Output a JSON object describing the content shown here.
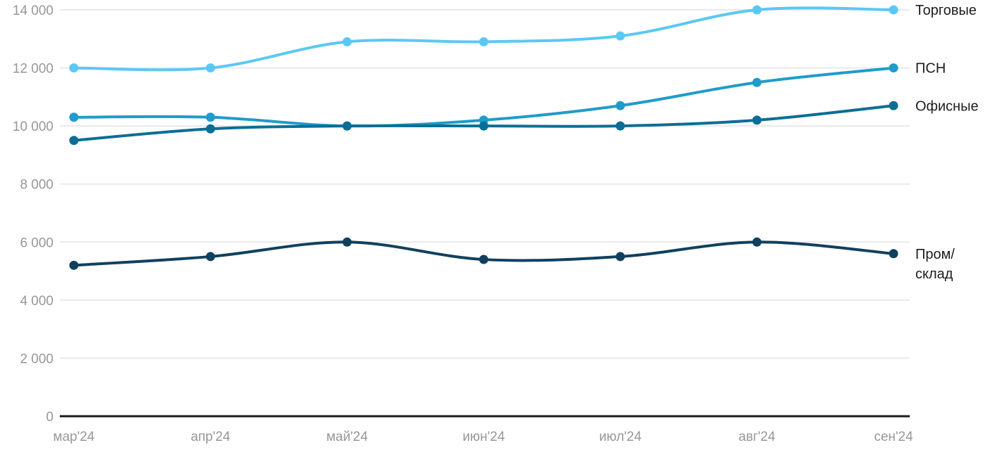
{
  "chart_data": {
    "type": "line",
    "title": "",
    "xlabel": "",
    "ylabel": "",
    "categories": [
      "мар'24",
      "апр'24",
      "май'24",
      "июн'24",
      "июл'24",
      "авг'24",
      "сен'24"
    ],
    "series": [
      {
        "name": "Торговые",
        "legend_lines": [
          "Торговые"
        ],
        "color": "#5BC8F3",
        "values": [
          12000,
          12000,
          12900,
          12900,
          13100,
          14000,
          14000
        ]
      },
      {
        "name": "ПСН",
        "legend_lines": [
          "ПСН"
        ],
        "color": "#1F9CC9",
        "values": [
          10300,
          10300,
          10000,
          10200,
          10700,
          11500,
          12000
        ]
      },
      {
        "name": "Офисные",
        "legend_lines": [
          "Офисные"
        ],
        "color": "#0B6E96",
        "values": [
          9500,
          9900,
          10000,
          10000,
          10000,
          10200,
          10700
        ]
      },
      {
        "name": "Пром/склад",
        "legend_lines": [
          "Пром/",
          "склад"
        ],
        "color": "#11405F",
        "values": [
          5200,
          5500,
          6000,
          5400,
          5500,
          6000,
          5600
        ]
      }
    ],
    "ylim": [
      0,
      14000
    ],
    "ytick_step": 2000,
    "ytick_labels": [
      "0",
      "2 000",
      "4 000",
      "6 000",
      "8 000",
      "10 000",
      "12 000",
      "14 000"
    ],
    "grid": true,
    "legend_position": "right-of-line-end",
    "colors": {
      "gridline": "#e9e9e9",
      "axis_line": "#1a1a1a",
      "tick_label": "#979797",
      "legend_label": "#1c1c1c",
      "background": "#ffffff"
    }
  }
}
